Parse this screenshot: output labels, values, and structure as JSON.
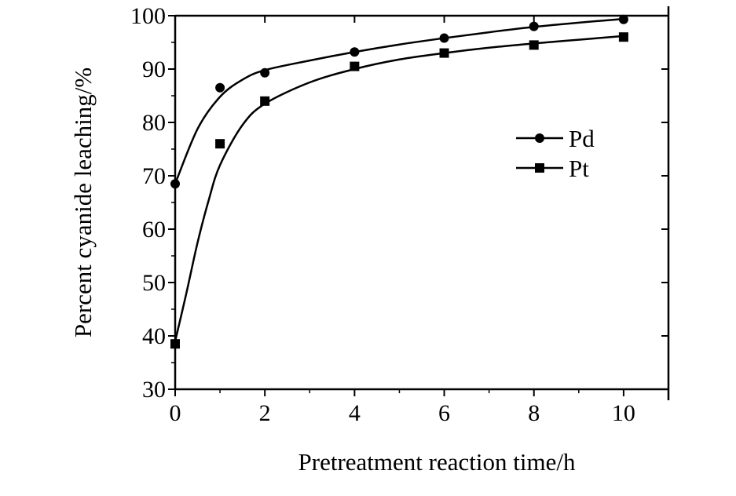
{
  "chart_data": {
    "type": "line",
    "title": "",
    "xlabel": "Pretreatment reaction time/h",
    "ylabel": "Percent cyanide leaching/%",
    "xlim": [
      0,
      11
    ],
    "ylim": [
      30,
      100
    ],
    "x_ticks": [
      0,
      2,
      4,
      6,
      8,
      10
    ],
    "y_ticks": [
      30,
      40,
      50,
      60,
      70,
      80,
      90,
      100
    ],
    "grid": false,
    "legend_position": "right",
    "series": [
      {
        "name": "Pd",
        "marker": "circle",
        "color": "#000000",
        "points": [
          {
            "x": 0,
            "y": 68.5
          },
          {
            "x": 1,
            "y": 86.5
          },
          {
            "x": 2,
            "y": 89.3
          },
          {
            "x": 4,
            "y": 93.2
          },
          {
            "x": 6,
            "y": 95.8
          },
          {
            "x": 8,
            "y": 98.0
          },
          {
            "x": 10,
            "y": 99.3
          }
        ],
        "fit": [
          {
            "x": 0,
            "y": 68.5
          },
          {
            "x": 0.5,
            "y": 78.8
          },
          {
            "x": 1,
            "y": 84.8
          },
          {
            "x": 1.5,
            "y": 88.0
          },
          {
            "x": 2,
            "y": 89.8
          },
          {
            "x": 3,
            "y": 91.6
          },
          {
            "x": 4,
            "y": 93.2
          },
          {
            "x": 5,
            "y": 94.6
          },
          {
            "x": 6,
            "y": 95.8
          },
          {
            "x": 7,
            "y": 96.9
          },
          {
            "x": 8,
            "y": 97.9
          },
          {
            "x": 9,
            "y": 98.7
          },
          {
            "x": 10,
            "y": 99.4
          }
        ]
      },
      {
        "name": "Pt",
        "marker": "square",
        "color": "#000000",
        "points": [
          {
            "x": 0,
            "y": 38.5
          },
          {
            "x": 1,
            "y": 76.0
          },
          {
            "x": 2,
            "y": 84.0
          },
          {
            "x": 4,
            "y": 90.5
          },
          {
            "x": 6,
            "y": 93.0
          },
          {
            "x": 8,
            "y": 94.5
          },
          {
            "x": 10,
            "y": 96.0
          }
        ],
        "fit": [
          {
            "x": 0,
            "y": 39.0
          },
          {
            "x": 0.25,
            "y": 48.0
          },
          {
            "x": 0.5,
            "y": 57.5
          },
          {
            "x": 0.75,
            "y": 65.5
          },
          {
            "x": 1,
            "y": 72.0
          },
          {
            "x": 1.5,
            "y": 79.5
          },
          {
            "x": 2,
            "y": 83.5
          },
          {
            "x": 3,
            "y": 87.5
          },
          {
            "x": 4,
            "y": 90.0
          },
          {
            "x": 5,
            "y": 91.8
          },
          {
            "x": 6,
            "y": 93.0
          },
          {
            "x": 7,
            "y": 94.0
          },
          {
            "x": 8,
            "y": 94.8
          },
          {
            "x": 9,
            "y": 95.5
          },
          {
            "x": 10,
            "y": 96.2
          }
        ]
      }
    ]
  }
}
